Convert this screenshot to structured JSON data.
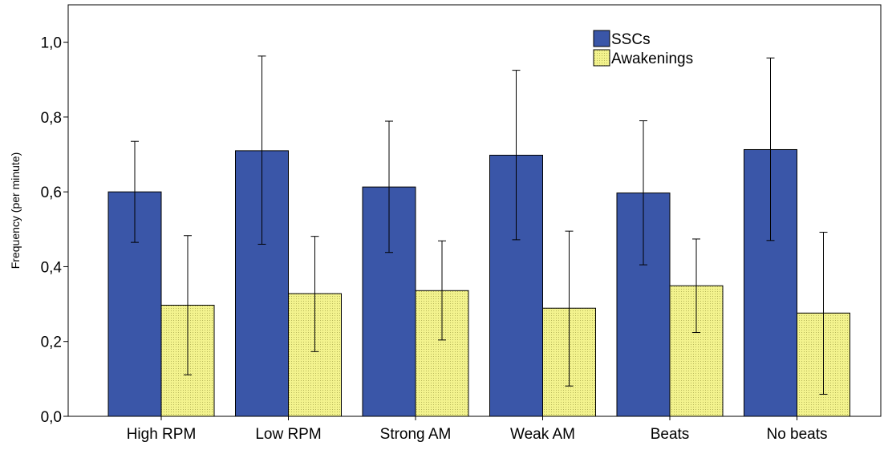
{
  "chart_data": {
    "type": "bar",
    "title": "",
    "xlabel": "",
    "ylabel": "Frequency (per minute)",
    "ylim": [
      0,
      1.1
    ],
    "yticks": [
      "0,0",
      "0,2",
      "0,4",
      "0,6",
      "0,8",
      "1,0"
    ],
    "ytick_values": [
      0,
      0.2,
      0.4,
      0.6,
      0.8,
      1.0
    ],
    "grid": false,
    "legend_position": "top-right",
    "categories": [
      "High RPM",
      "Low RPM",
      "Strong AM",
      "Weak AM",
      "Beats",
      "No beats"
    ],
    "series": [
      {
        "name": "SSCs",
        "color": "#3a56a8",
        "pattern": "solid",
        "values": [
          0.6,
          0.71,
          0.613,
          0.698,
          0.597,
          0.713
        ],
        "error_low": [
          0.465,
          0.46,
          0.438,
          0.472,
          0.405,
          0.47
        ],
        "error_high": [
          0.735,
          0.963,
          0.789,
          0.925,
          0.79,
          0.958
        ]
      },
      {
        "name": "Awakenings",
        "color": "#f0f08c",
        "pattern": "dotted",
        "values": [
          0.297,
          0.328,
          0.336,
          0.289,
          0.349,
          0.276
        ],
        "error_low": [
          0.111,
          0.173,
          0.204,
          0.081,
          0.224,
          0.059
        ],
        "error_high": [
          0.483,
          0.481,
          0.469,
          0.495,
          0.474,
          0.492
        ]
      }
    ]
  }
}
